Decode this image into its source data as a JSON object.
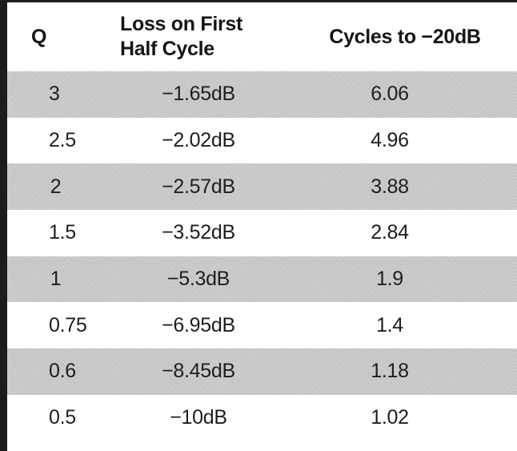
{
  "table": {
    "headers": {
      "q": "Q",
      "loss_line1": "Loss on First",
      "loss_line2": "Half Cycle",
      "cycles": "Cycles to −20dB"
    },
    "rows": [
      {
        "q": "3",
        "loss": "−1.65dB",
        "cycles": "6.06",
        "shaded": true
      },
      {
        "q": "2.5",
        "loss": "−2.02dB",
        "cycles": "4.96",
        "shaded": false
      },
      {
        "q": "2",
        "loss": "−2.57dB",
        "cycles": "3.88",
        "shaded": true
      },
      {
        "q": "1.5",
        "loss": "−3.52dB",
        "cycles": "2.84",
        "shaded": false
      },
      {
        "q": "1",
        "loss": "−5.3dB",
        "cycles": "1.9",
        "shaded": true
      },
      {
        "q": "0.75",
        "loss": "−6.95dB",
        "cycles": "1.4",
        "shaded": false
      },
      {
        "q": "0.6",
        "loss": "−8.45dB",
        "cycles": "1.18",
        "shaded": true
      },
      {
        "q": "0.5",
        "loss": "−10dB",
        "cycles": "1.02",
        "shaded": false
      }
    ]
  },
  "colors": {
    "shade": "#c9c9c9",
    "border": "#1c1c1c",
    "text": "#1e1e1e"
  }
}
